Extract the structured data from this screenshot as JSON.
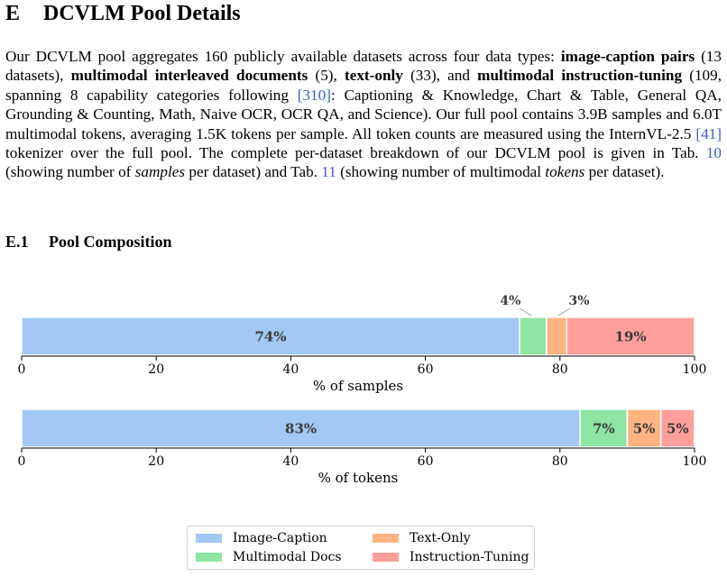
{
  "section": {
    "number": "E",
    "title": "DCVLM Pool Details"
  },
  "paragraph": {
    "t1": "Our DCVLM pool aggregates 160 publicly available datasets across four data types: ",
    "b1": "image-caption pairs",
    "t2": " (13 datasets), ",
    "b2": "multimodal interleaved documents",
    "t3": " (5), ",
    "b3": "text-only",
    "t4": " (33), and ",
    "b4": "multimodal instruction-tuning",
    "t5": " (109, spanning 8 capability categories following ",
    "c1": "[310]",
    "t6": ": Captioning & Knowledge, Chart & Table, General QA, Grounding & Counting, Math, Naive OCR, OCR QA, and Science). Our full pool contains 3.9B samples and 6.0T multimodal tokens, averaging 1.5K tokens per sample. All token counts are measured using the InternVL-2.5 ",
    "c2": "[41]",
    "t7": " tokenizer over the full pool. The complete per-dataset breakdown of our DCVLM pool is given in Tab. ",
    "c3": "10",
    "t8": " (showing number of ",
    "i1": "samples",
    "t9": " per dataset) and Tab. ",
    "c4": "11",
    "t10": " (showing number of multimodal ",
    "i2": "tokens",
    "t11": " per dataset)."
  },
  "subsection": {
    "number": "E.1",
    "title": "Pool Composition"
  },
  "chart_data": {
    "type": "bar",
    "orientation": "horizontal-stacked",
    "series_names": [
      "Image-Caption",
      "Multimodal Docs",
      "Text-Only",
      "Instruction-Tuning"
    ],
    "colors": [
      "#a1c9f4",
      "#8de5a1",
      "#ffb482",
      "#ff9f9b"
    ],
    "bars": [
      {
        "xlabel": "% of samples",
        "values": [
          74,
          4,
          3,
          19
        ],
        "labels": [
          "74%",
          "4%",
          "3%",
          "19%"
        ],
        "label_outside": [
          false,
          true,
          true,
          false
        ]
      },
      {
        "xlabel": "% of tokens",
        "values": [
          83,
          7,
          5,
          5
        ],
        "labels": [
          "83%",
          "7%",
          "5%",
          "5%"
        ],
        "label_outside": [
          false,
          false,
          false,
          false
        ]
      }
    ],
    "xlim": [
      0,
      100
    ],
    "xticks": [
      "0",
      "20",
      "40",
      "60",
      "80",
      "100"
    ],
    "legend_position": "bottom-center"
  }
}
